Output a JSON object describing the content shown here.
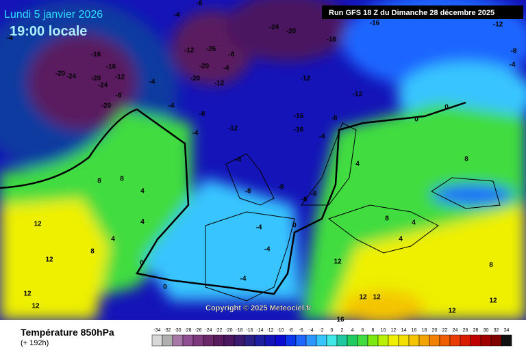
{
  "header": {
    "date": "Lundi 5 janvier 2026",
    "time": "19:00 locale",
    "run": "Run GFS 18 Z du Dimanche 28 décembre 2025"
  },
  "copyright": "Copyright © 2025 Meteociel.fr",
  "footer": {
    "title": "Température 850hPa",
    "lead": "(+ 192h)"
  },
  "legend": {
    "values": [
      -34,
      -32,
      -30,
      -28,
      -26,
      -24,
      -22,
      -20,
      -18,
      -16,
      -14,
      -12,
      -10,
      -8,
      -6,
      -4,
      -2,
      0,
      2,
      4,
      6,
      8,
      10,
      12,
      14,
      16,
      18,
      20,
      22,
      24,
      26,
      28,
      30,
      32,
      34
    ],
    "colors": [
      "#d8d8d8",
      "#b0b0b0",
      "#a678a6",
      "#904f90",
      "#7c3a7c",
      "#6a286a",
      "#5a1a5e",
      "#4c1660",
      "#3c1a70",
      "#2c2084",
      "#1e1ea0",
      "#1414b8",
      "#0a0ad0",
      "#0a36ee",
      "#1e66ff",
      "#2e96ff",
      "#38c4ff",
      "#40e8e8",
      "#20c8a0",
      "#20cc60",
      "#40dc40",
      "#7cea10",
      "#b8f000",
      "#eef000",
      "#f4e000",
      "#f4c400",
      "#f4a400",
      "#f48000",
      "#f05c00",
      "#ea3c00",
      "#d81c00",
      "#c00000",
      "#a00000",
      "#800000",
      "#101010"
    ]
  },
  "map_labels": [
    -20,
    -24,
    -16,
    -16,
    -20,
    -24,
    -12,
    -20,
    -8,
    -4,
    -4,
    -8,
    -12,
    -26,
    -8,
    -20,
    -4,
    -20,
    -12,
    -24,
    -20,
    -16,
    -16,
    -12,
    -12,
    -12,
    -4,
    -4,
    -8,
    -4,
    -12,
    -16,
    -16,
    -8,
    -4,
    -8,
    -8,
    -8,
    -8,
    -8,
    -4,
    -4,
    -4,
    0,
    0,
    0,
    4,
    8,
    8,
    4,
    12,
    12,
    12,
    12,
    8,
    4,
    0,
    0,
    4,
    8,
    4,
    4,
    8,
    12,
    12,
    12,
    12,
    12,
    16,
    8,
    -4,
    -8
  ]
}
